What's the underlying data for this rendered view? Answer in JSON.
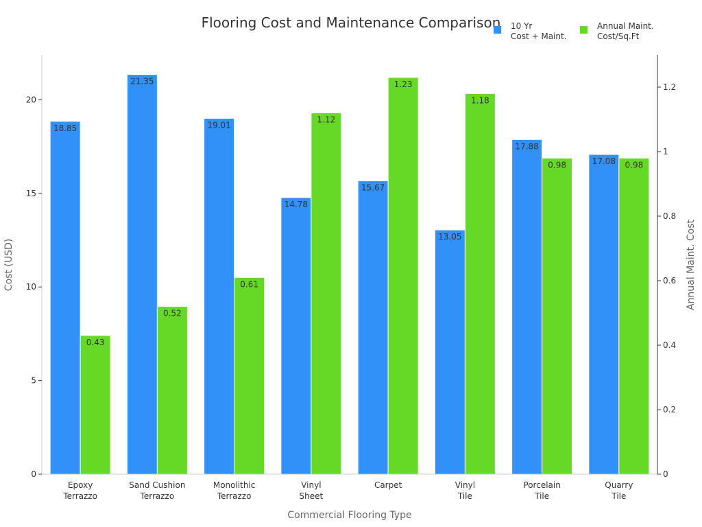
{
  "chart_data": {
    "type": "bar",
    "title": "Flooring Cost and Maintenance Comparison",
    "xlabel": "Commercial Flooring Type",
    "ylabel": "Cost (USD)",
    "y2label": "Annual Maint. Cost",
    "categories": [
      [
        "Epoxy",
        "Terrazzo"
      ],
      [
        "Sand Cushion",
        "Terrazzo"
      ],
      [
        "Monolithic",
        "Terrazzo"
      ],
      [
        "Vinyl",
        "Sheet"
      ],
      [
        "Carpet"
      ],
      [
        "Vinyl",
        "Tile"
      ],
      [
        "Porcelain",
        "Tile"
      ],
      [
        "Quarry",
        "Tile"
      ]
    ],
    "series": [
      {
        "name": [
          "10 Yr",
          "Cost + Maint."
        ],
        "axis": "left",
        "color": "#3191f7",
        "values": [
          18.85,
          21.35,
          19.01,
          14.78,
          15.67,
          13.05,
          17.88,
          17.08
        ],
        "labels": [
          "18.85",
          "21.35",
          "19.01",
          "14.78",
          "15.67",
          "13.05",
          "17.88",
          "17.08"
        ]
      },
      {
        "name": [
          "Annual Maint.",
          "Cost/Sq.Ft"
        ],
        "axis": "right",
        "color": "#66d926",
        "values": [
          0.43,
          0.52,
          0.61,
          1.12,
          1.23,
          1.18,
          0.98,
          0.98
        ],
        "labels": [
          "0.43",
          "0.52",
          "0.61",
          "1.12",
          "1.23",
          "1.18",
          "0.98",
          "0.98"
        ]
      }
    ],
    "ylim": [
      0,
      22.4
    ],
    "y2lim": [
      0,
      1.3
    ],
    "yticks": [
      0,
      5,
      10,
      15,
      20
    ],
    "yticklabels": [
      "0",
      "5",
      "10",
      "15",
      "20"
    ],
    "y2ticks": [
      0,
      0.2,
      0.4,
      0.6,
      0.8,
      1,
      1.2
    ],
    "y2ticklabels": [
      "0",
      "0.2",
      "0.4",
      "0.6",
      "0.8",
      "1",
      "1.2"
    ],
    "grid": false,
    "legend_position": "top-right"
  }
}
